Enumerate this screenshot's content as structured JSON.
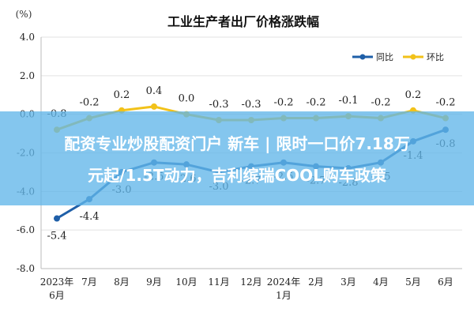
{
  "banner": {
    "line1": "配资专业炒股配资门户 新车 | 限时一口价7.18万",
    "line2": "元起/1.5T动力，吉利缤瑞COOL购车政策"
  },
  "chart_data": {
    "type": "line",
    "title": "工业生产者出厂价格涨跌幅",
    "unit_label": "(%)",
    "categories": [
      "2023年6月",
      "7月",
      "8月",
      "9月",
      "10月",
      "11月",
      "12月",
      "2024年1月",
      "2月",
      "3月",
      "4月",
      "5月",
      "6月"
    ],
    "category_lines": [
      [
        "2023年",
        "6月"
      ],
      [
        "7月"
      ],
      [
        "8月"
      ],
      [
        "9月"
      ],
      [
        "10月"
      ],
      [
        "11月"
      ],
      [
        "12月"
      ],
      [
        "2024年",
        "1月"
      ],
      [
        "2月"
      ],
      [
        "3月"
      ],
      [
        "4月"
      ],
      [
        "5月"
      ],
      [
        "6月"
      ]
    ],
    "series": [
      {
        "name": "同比",
        "color": "#1f5fa8",
        "values": [
          -5.4,
          -4.4,
          -3.0,
          -2.5,
          -2.6,
          -3.0,
          -2.7,
          -2.5,
          -2.7,
          -2.8,
          -2.5,
          -1.4,
          -0.8
        ]
      },
      {
        "name": "环比",
        "color": "#f2c21a",
        "values": [
          -0.8,
          -0.2,
          0.2,
          0.4,
          0.0,
          -0.3,
          -0.3,
          -0.2,
          -0.2,
          -0.1,
          -0.2,
          0.2,
          -0.2
        ]
      }
    ],
    "ylim": [
      -8.0,
      4.0
    ],
    "yticks": [
      "4.0",
      "2.0",
      "0.0",
      "-2.0",
      "-4.0",
      "-6.0",
      "-8.0"
    ],
    "ytick_values": [
      4,
      2,
      0,
      -2,
      -4,
      -6,
      -8
    ],
    "grid": true,
    "legend_position": "top-right",
    "labels_yoy": [
      "-5.4",
      "-4.4",
      "-3.0",
      "-2.5",
      "-2.6",
      "-3.0",
      "-2.7",
      "-2.5",
      "-2.7",
      "-2.8",
      "-2.5",
      "-1.4",
      "-0.8"
    ],
    "labels_mom": [
      "-0.8",
      "-0.2",
      "0.2",
      "0.4",
      "0.0",
      "-0.3",
      "-0.3",
      "-0.2",
      "-0.2",
      "-0.1",
      "-0.2",
      "0.2",
      "-0.2"
    ]
  }
}
